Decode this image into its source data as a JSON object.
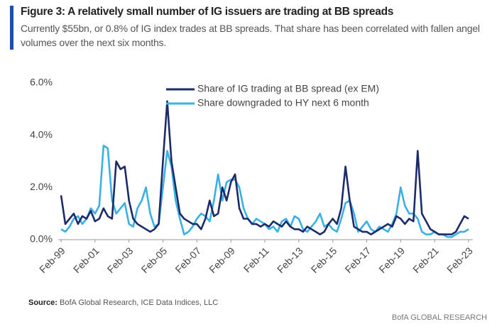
{
  "chart_data": {
    "type": "line",
    "title": "Figure 3: A relatively small number of IG issuers are trading at BB spreads",
    "subtitle": "Currently $55bn, or 0.8% of IG index trades at BB spreads. That share has been correlated with fallen angel volumes over the next six months.",
    "source_label": "Source:",
    "source": "BofA Global Research, ICE Data Indices, LLC",
    "brand": "BofA GLOBAL RESEARCH",
    "legend": "top",
    "grid": false,
    "ylim": [
      0,
      6
    ],
    "yticks": [
      {
        "value": 0,
        "label": "0.0%"
      },
      {
        "value": 2,
        "label": "2.0%"
      },
      {
        "value": 4,
        "label": "4.0%"
      },
      {
        "value": 6,
        "label": "6.0%"
      }
    ],
    "categories": [
      "Feb-99",
      null,
      null,
      null,
      null,
      null,
      null,
      null,
      "Feb-01",
      null,
      null,
      null,
      null,
      null,
      null,
      null,
      "Feb-03",
      null,
      null,
      null,
      null,
      null,
      null,
      null,
      "Feb-05",
      null,
      null,
      null,
      null,
      null,
      null,
      null,
      "Feb-07",
      null,
      null,
      null,
      null,
      null,
      null,
      null,
      "Feb-09",
      null,
      null,
      null,
      null,
      null,
      null,
      null,
      "Feb-11",
      null,
      null,
      null,
      null,
      null,
      null,
      null,
      "Feb-13",
      null,
      null,
      null,
      null,
      null,
      null,
      null,
      "Feb-15",
      null,
      null,
      null,
      null,
      null,
      null,
      null,
      "Feb-17",
      null,
      null,
      null,
      null,
      null,
      null,
      null,
      "Feb-19",
      null,
      null,
      null,
      null,
      null,
      null,
      null,
      "Feb-21",
      null,
      null,
      null,
      null,
      null,
      null,
      null,
      "Feb-23"
    ],
    "series": [
      {
        "name": "Share of IG trading at BB spread (ex EM)",
        "color": "#1c2c6a",
        "values": [
          1.7,
          0.6,
          0.8,
          1.0,
          0.6,
          0.9,
          0.8,
          1.1,
          0.7,
          0.8,
          1.2,
          0.9,
          0.8,
          3.0,
          2.7,
          2.8,
          1.5,
          0.8,
          0.6,
          0.5,
          0.4,
          0.3,
          0.4,
          0.6,
          3.0,
          5.3,
          3.0,
          2.0,
          1.0,
          0.8,
          0.7,
          0.6,
          0.6,
          0.4,
          0.8,
          1.5,
          0.9,
          1.0,
          2.0,
          1.5,
          2.2,
          2.5,
          1.2,
          0.8,
          0.8,
          0.6,
          0.6,
          0.5,
          0.6,
          0.5,
          0.7,
          0.6,
          0.5,
          0.7,
          0.5,
          0.4,
          0.4,
          0.3,
          0.5,
          0.4,
          0.3,
          0.2,
          0.3,
          0.6,
          0.8,
          0.6,
          1.2,
          2.8,
          1.5,
          0.5,
          0.4,
          0.3,
          0.3,
          0.2,
          0.3,
          0.4,
          0.5,
          0.6,
          0.5,
          0.9,
          0.8,
          0.6,
          0.8,
          0.7,
          3.4,
          1.0,
          0.7,
          0.4,
          0.3,
          0.2,
          0.2,
          0.2,
          0.2,
          0.3,
          0.6,
          0.9,
          0.8
        ]
      },
      {
        "name": "Share downgraded to HY next 6 month",
        "color": "#3ab0e4",
        "values": [
          0.4,
          0.3,
          0.5,
          0.8,
          0.9,
          0.6,
          0.8,
          1.2,
          1.0,
          1.3,
          3.6,
          3.5,
          1.5,
          1.0,
          1.2,
          1.4,
          0.6,
          0.5,
          1.2,
          1.5,
          2.0,
          1.0,
          0.5,
          0.6,
          2.0,
          3.4,
          2.8,
          1.5,
          0.8,
          0.2,
          0.3,
          0.5,
          0.8,
          1.0,
          0.9,
          0.7,
          1.5,
          2.5,
          1.5,
          2.2,
          2.3,
          2.3,
          2.0,
          1.2,
          0.8,
          0.6,
          0.8,
          0.7,
          0.6,
          0.4,
          0.5,
          0.3,
          0.7,
          0.8,
          0.5,
          0.9,
          0.8,
          0.4,
          0.3,
          0.5,
          0.7,
          1.0,
          0.5,
          0.6,
          0.4,
          0.3,
          0.8,
          1.4,
          1.5,
          1.0,
          0.3,
          0.5,
          0.7,
          0.4,
          0.3,
          0.5,
          0.4,
          0.3,
          0.6,
          1.0,
          2.0,
          1.3,
          1.0,
          1.0,
          0.8,
          0.3,
          0.2,
          0.2,
          0.3,
          0.2,
          0.2,
          0.1,
          0.1,
          0.2,
          0.3,
          0.3,
          0.4
        ]
      }
    ]
  }
}
